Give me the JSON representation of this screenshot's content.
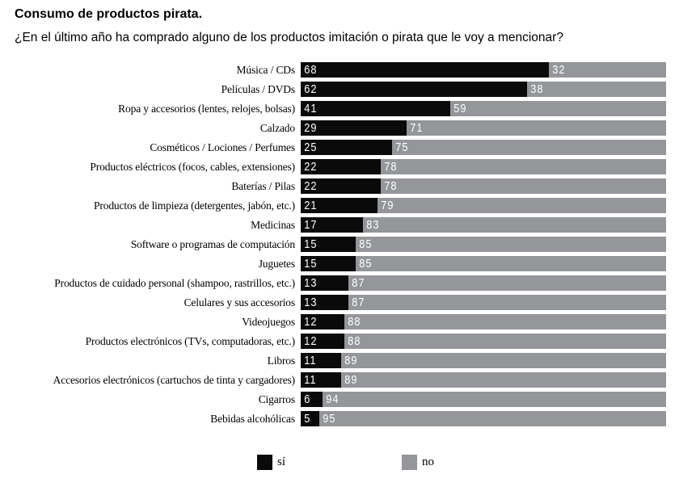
{
  "header": {
    "title": "Consumo de productos pirata.",
    "subtitle": "¿En el último año ha comprado alguno de los productos imitación o pirata que le voy a mencionar?"
  },
  "colors": {
    "yes": "#0a0a0a",
    "no": "#949699",
    "value_text": "#ffffff",
    "background": "#ffffff"
  },
  "legend": {
    "items": [
      {
        "label": "sí",
        "color": "#0a0a0a"
      },
      {
        "label": "no",
        "color": "#949699"
      }
    ]
  },
  "chart_data": {
    "type": "bar",
    "variant": "horizontal-stacked",
    "title": "Consumo de productos pirata.",
    "subtitle": "¿En el último año ha comprado alguno de los productos imitación o pirata que le voy a mencionar?",
    "xlim": [
      0,
      100
    ],
    "unit": "percent",
    "grid": false,
    "value_labels": "inside-left-of-segment",
    "legend_position": "bottom",
    "categories": [
      "Música / CDs",
      "Películas / DVDs",
      "Ropa y accesorios (lentes, relojes, bolsas)",
      "Calzado",
      "Cosméticos / Lociones / Perfumes",
      "Productos eléctricos (focos, cables, extensiones)",
      "Baterías / Pilas",
      "Productos de limpieza (detergentes, jabón, etc.)",
      "Medicinas",
      "Software o programas de computación",
      "Juguetes",
      "Productos de cuidado personal (shampoo, rastrillos, etc.)",
      "Celulares y sus accesorios",
      "Videojuegos",
      "Productos electrónicos (TVs, computadoras, etc.)",
      "Libros",
      "Accesorios electrónicos (cartuchos de tinta y cargadores)",
      "Cigarros",
      "Bebidas alcohólicas"
    ],
    "series": [
      {
        "name": "sí",
        "color": "#0a0a0a",
        "values": [
          68,
          62,
          41,
          29,
          25,
          22,
          22,
          21,
          17,
          15,
          15,
          13,
          13,
          12,
          12,
          11,
          11,
          6,
          5
        ]
      },
      {
        "name": "no",
        "color": "#949699",
        "values": [
          32,
          38,
          59,
          71,
          75,
          78,
          78,
          79,
          83,
          85,
          85,
          87,
          87,
          88,
          88,
          89,
          89,
          94,
          95
        ]
      }
    ]
  }
}
